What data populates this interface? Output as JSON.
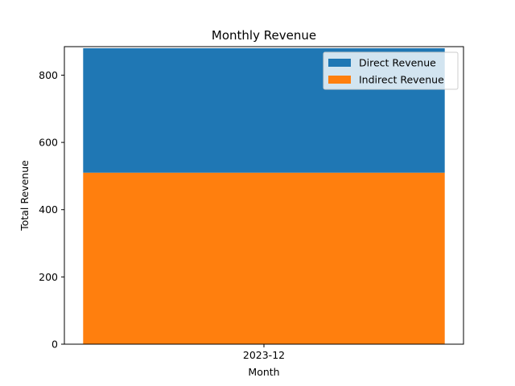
{
  "chart_data": {
    "type": "bar",
    "stacked": true,
    "title": "Monthly Revenue",
    "xlabel": "Month",
    "ylabel": "Total Revenue",
    "categories": [
      "2023-12"
    ],
    "series": [
      {
        "name": "Indirect Revenue",
        "values": [
          510
        ],
        "color": "#ff7f0e"
      },
      {
        "name": "Direct Revenue",
        "values": [
          370
        ],
        "color": "#1f77b4"
      }
    ],
    "ylim": [
      0,
      880
    ],
    "yticks": [
      0,
      200,
      400,
      600,
      800
    ],
    "grid": false,
    "legend": {
      "placement": "top-right",
      "entries": [
        "Direct Revenue",
        "Indirect Revenue"
      ]
    }
  }
}
